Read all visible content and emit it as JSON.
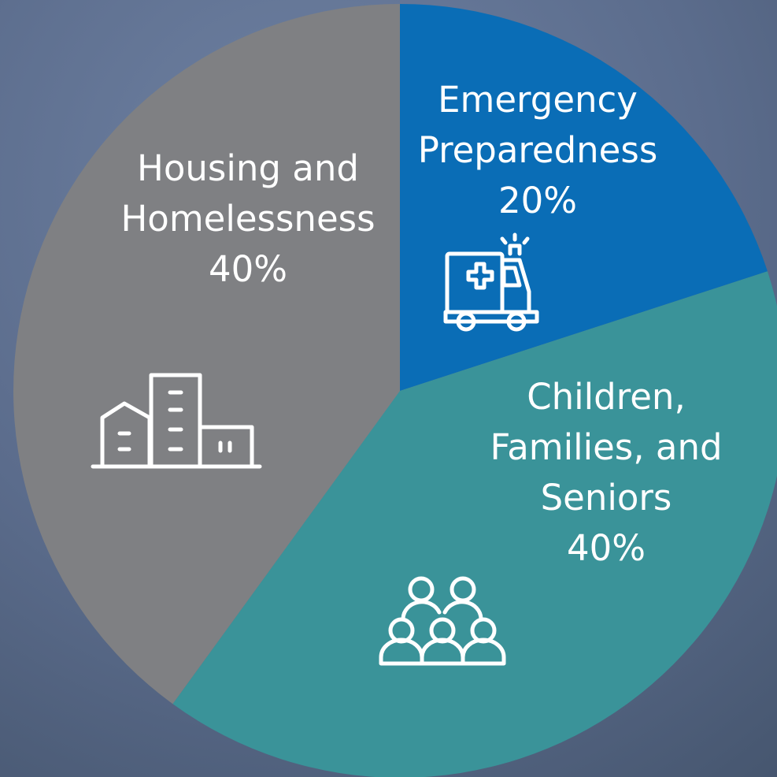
{
  "chart_data": {
    "type": "pie",
    "categories": [
      "Emergency Preparedness",
      "Children, Families, and Seniors",
      "Housing and Homelessness"
    ],
    "values": [
      20,
      40,
      40
    ],
    "value_labels": [
      "20%",
      "40%",
      "40%"
    ],
    "colors": [
      "#0a6db6",
      "#3a9399",
      "#7f8083"
    ]
  }
}
